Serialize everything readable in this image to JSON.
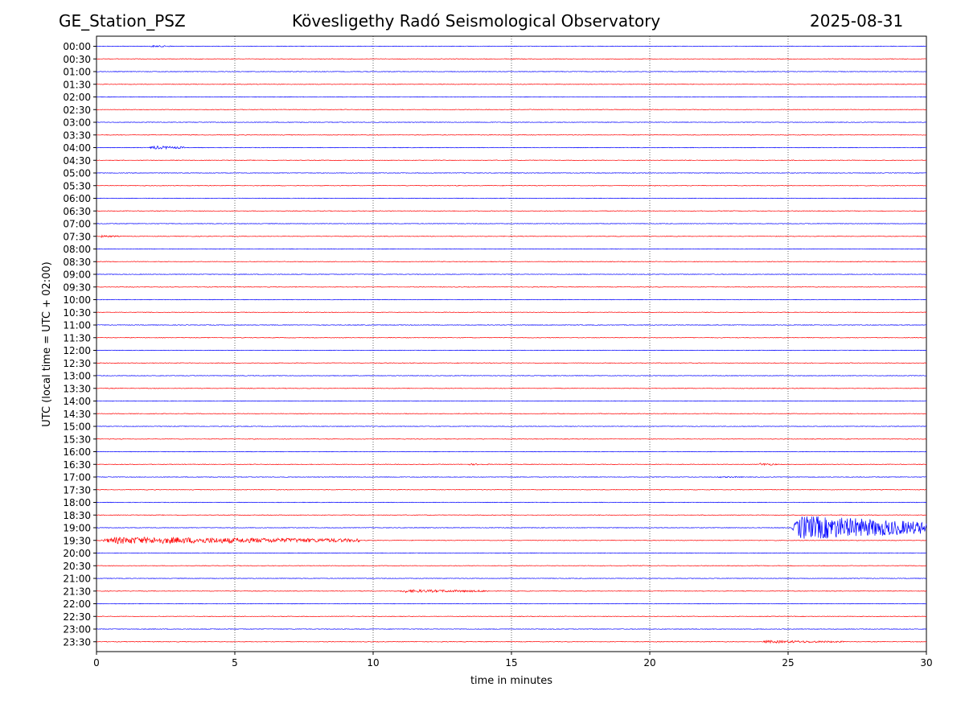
{
  "header": {
    "station": "GE_Station_PSZ",
    "observatory": "Kövesligethy Radó Seismological Observatory",
    "date": "2025-08-31"
  },
  "chart_data": {
    "type": "line",
    "title": "Kövesligethy Radó Seismological Observatory",
    "xlabel": "time in minutes",
    "ylabel": "UTC (local time = UTC + 02:00)",
    "xlim": [
      0,
      30
    ],
    "xticks": [
      "0",
      "5",
      "10",
      "15",
      "20",
      "25",
      "30"
    ],
    "grid": "vertical dotted lines at 5-minute ticks",
    "colors": {
      "even_rows": "#0000ff",
      "odd_rows": "#ff0000"
    },
    "traces": [
      "00:00",
      "00:30",
      "01:00",
      "01:30",
      "02:00",
      "02:30",
      "03:00",
      "03:30",
      "04:00",
      "04:30",
      "05:00",
      "05:30",
      "06:00",
      "06:30",
      "07:00",
      "07:30",
      "08:00",
      "08:30",
      "09:00",
      "09:30",
      "10:00",
      "10:30",
      "11:00",
      "11:30",
      "12:00",
      "12:30",
      "13:00",
      "13:30",
      "14:00",
      "14:30",
      "15:00",
      "15:30",
      "16:00",
      "16:30",
      "17:00",
      "17:30",
      "18:00",
      "18:30",
      "19:00",
      "19:30",
      "20:00",
      "20:30",
      "21:00",
      "21:30",
      "22:00",
      "22:30",
      "23:00",
      "23:30"
    ],
    "events": [
      {
        "trace": "00:00",
        "start_min": 1.9,
        "end_min": 2.8,
        "amplitude": 0.12
      },
      {
        "trace": "04:00",
        "start_min": 1.9,
        "end_min": 3.2,
        "amplitude": 0.22
      },
      {
        "trace": "07:30",
        "start_min": 0.1,
        "end_min": 0.8,
        "amplitude": 0.15
      },
      {
        "trace": "16:30",
        "start_min": 13.4,
        "end_min": 14.4,
        "amplitude": 0.1
      },
      {
        "trace": "16:30",
        "start_min": 23.9,
        "end_min": 24.6,
        "amplitude": 0.18
      },
      {
        "trace": "17:00",
        "start_min": 22.4,
        "end_min": 23.4,
        "amplitude": 0.1
      },
      {
        "trace": "19:00",
        "start_min": 25.1,
        "end_min": 30.0,
        "amplitude": 1.6
      },
      {
        "trace": "19:30",
        "start_min": 0.0,
        "end_min": 9.5,
        "amplitude": 0.45
      },
      {
        "trace": "21:30",
        "start_min": 10.9,
        "end_min": 14.2,
        "amplitude": 0.2
      },
      {
        "trace": "23:30",
        "start_min": 24.0,
        "end_min": 27.0,
        "amplitude": 0.18
      }
    ]
  }
}
